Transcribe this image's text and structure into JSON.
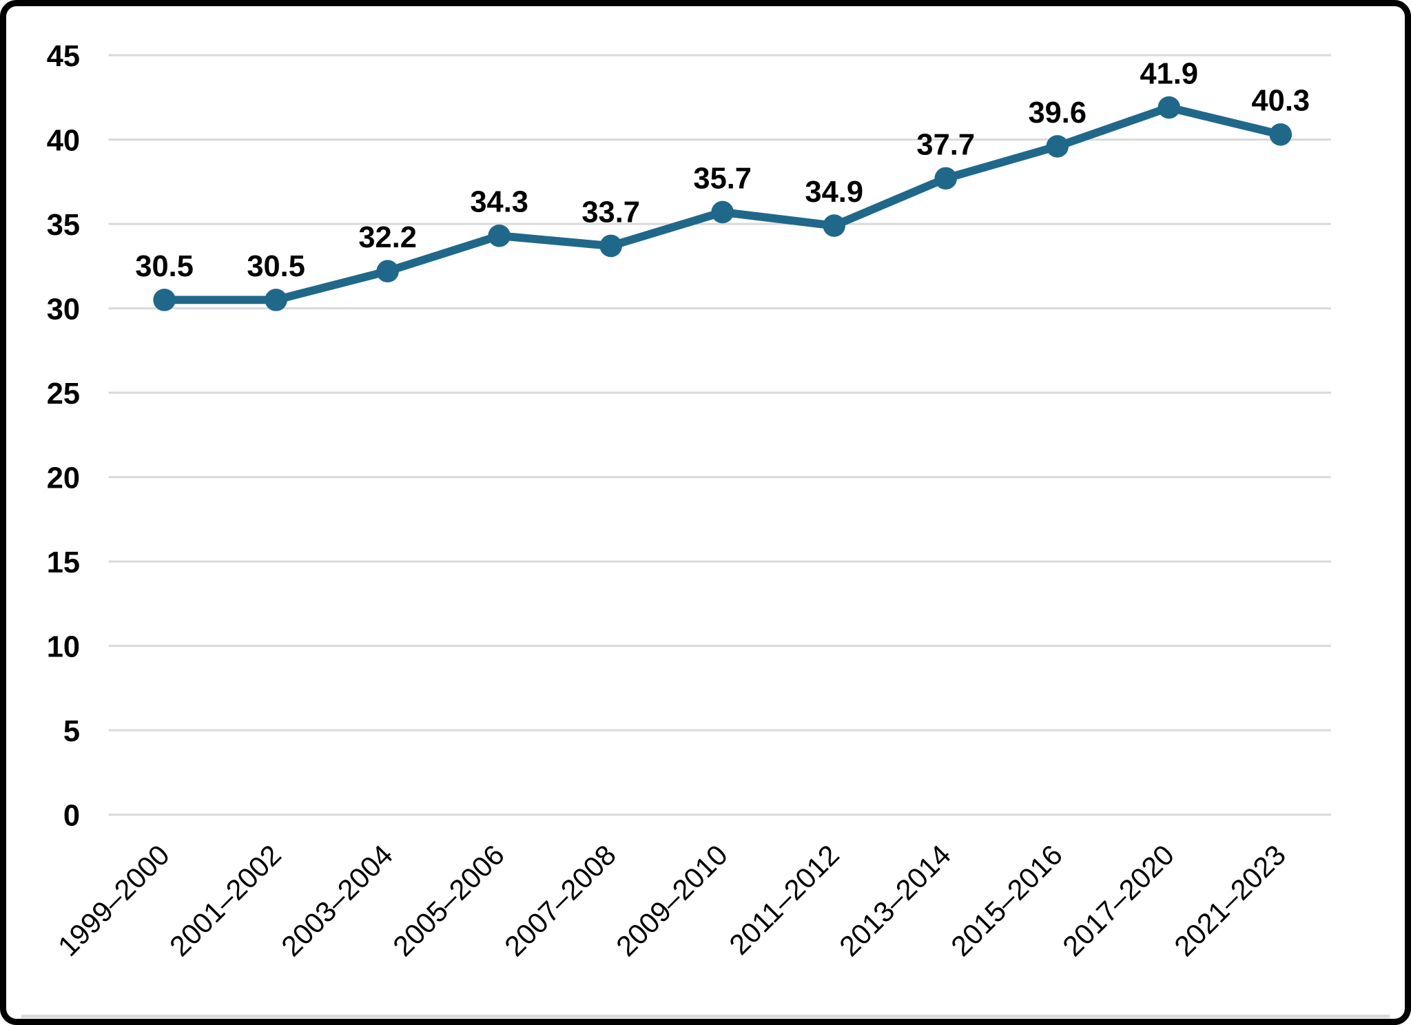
{
  "frame": {
    "border_color": "#000000",
    "background_color": "#ffffff",
    "bottom_edge_color": "#dbdbdb"
  },
  "chart_data": {
    "type": "line",
    "categories": [
      "1999–2000",
      "2001–2002",
      "2003–2004",
      "2005–2006",
      "2007–2008",
      "2009–2010",
      "2011–2012",
      "2013–2014",
      "2015–2016",
      "2017–2020",
      "2021–2023"
    ],
    "values": [
      30.5,
      30.5,
      32.2,
      34.3,
      33.7,
      35.7,
      34.9,
      37.7,
      39.6,
      41.9,
      40.3
    ],
    "data_labels": [
      "30.5",
      "30.5",
      "32.2",
      "34.3",
      "33.7",
      "35.7",
      "34.9",
      "37.7",
      "39.6",
      "41.9",
      "40.3"
    ],
    "yticks": [
      0,
      5,
      10,
      15,
      20,
      25,
      30,
      35,
      40,
      45
    ],
    "ylim": [
      0,
      45
    ],
    "ytick_step": 5,
    "grid": "horizontal",
    "legend": "none",
    "marker": "circle",
    "line_color": "#20688A",
    "gridline_color": "#D9D9D9",
    "label_color": "#000000"
  }
}
